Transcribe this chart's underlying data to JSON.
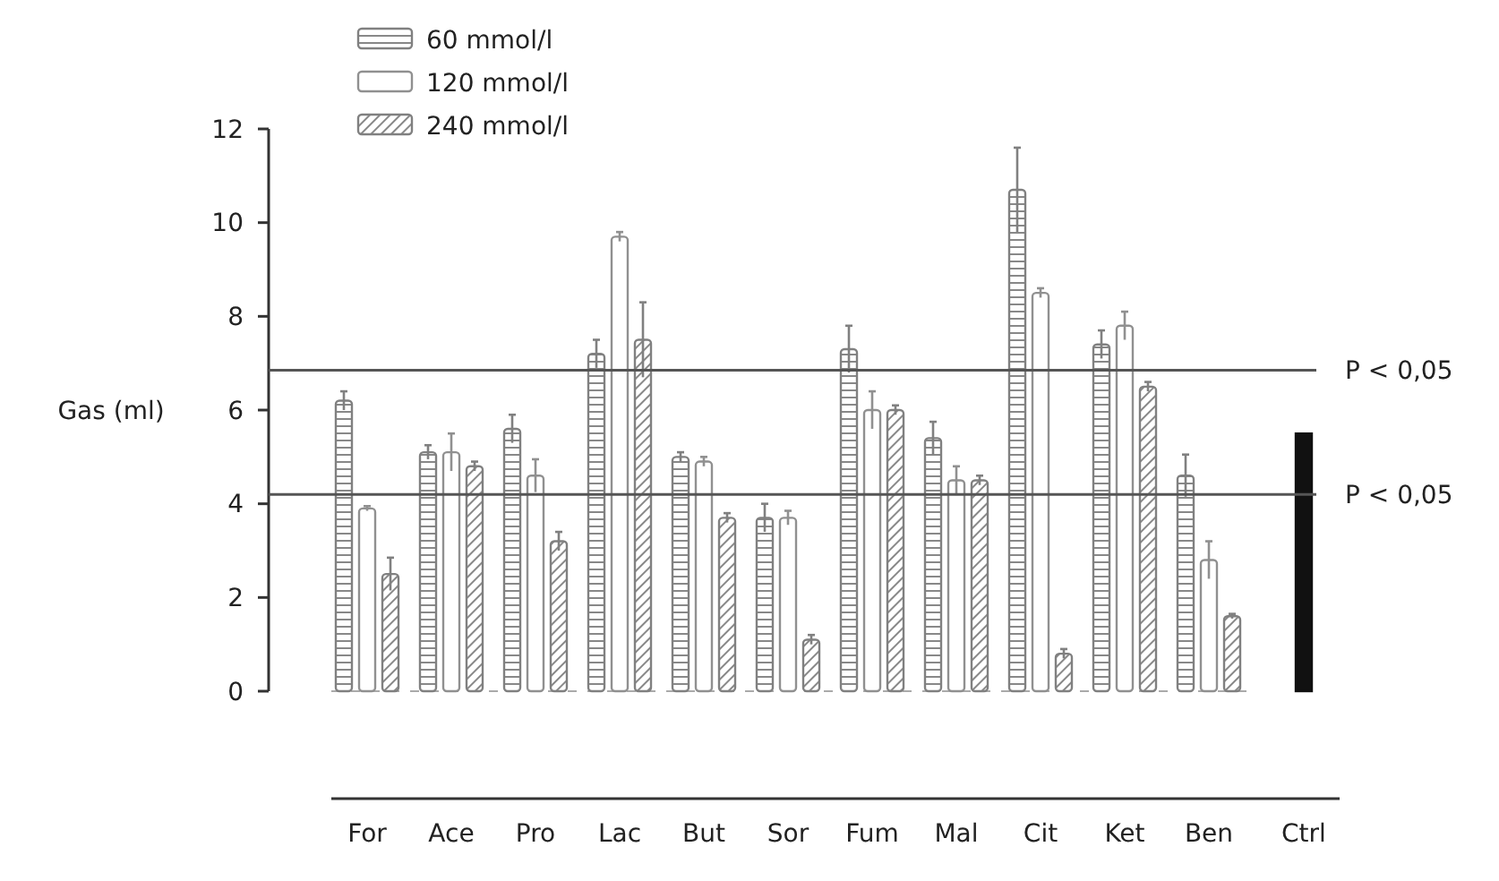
{
  "chart_data": {
    "type": "bar",
    "ylabel": "Gas (ml)",
    "categories": [
      "For",
      "Ace",
      "Pro",
      "Lac",
      "But",
      "Sor",
      "Fum",
      "Mal",
      "Cit",
      "Ket",
      "Ben",
      "Ctrl"
    ],
    "series": [
      {
        "name": "60 mmol/l",
        "color": "#808080",
        "values": [
          6.2,
          5.1,
          5.6,
          7.2,
          5.0,
          3.7,
          7.3,
          5.4,
          10.7,
          7.4,
          4.6,
          null
        ],
        "errors": [
          0.2,
          0.15,
          0.3,
          0.3,
          0.1,
          0.3,
          0.5,
          0.35,
          0.9,
          0.3,
          0.45,
          null
        ]
      },
      {
        "name": "120 mmol/l",
        "color": "#909090",
        "values": [
          3.9,
          5.1,
          4.6,
          9.7,
          4.9,
          3.7,
          6.0,
          4.5,
          8.5,
          7.8,
          2.8,
          null
        ],
        "errors": [
          0.05,
          0.4,
          0.35,
          0.1,
          0.1,
          0.15,
          0.4,
          0.3,
          0.1,
          0.3,
          0.4,
          null
        ]
      },
      {
        "name": "240 mmol/l",
        "color": "#808080",
        "values": [
          2.5,
          4.8,
          3.2,
          7.5,
          3.7,
          1.1,
          6.0,
          4.5,
          0.8,
          6.5,
          1.6,
          null
        ],
        "errors": [
          0.35,
          0.1,
          0.2,
          0.8,
          0.1,
          0.1,
          0.1,
          0.1,
          0.1,
          0.1,
          0.05,
          null
        ]
      },
      {
        "color": "#111111",
        "values": [
          null,
          null,
          null,
          null,
          null,
          null,
          null,
          null,
          null,
          null,
          null,
          5.5
        ]
      }
    ],
    "ylim": [
      0,
      12
    ],
    "yticks": [
      0,
      2,
      4,
      6,
      8,
      10,
      12
    ],
    "grid": false,
    "legend": "top left",
    "ref_lines": [
      {
        "axis": "y",
        "value": 6.85,
        "label": "P < 0,05",
        "color": "#555555"
      },
      {
        "axis": "y",
        "value": 4.2,
        "label": "P < 0,05",
        "color": "#555555"
      }
    ]
  }
}
